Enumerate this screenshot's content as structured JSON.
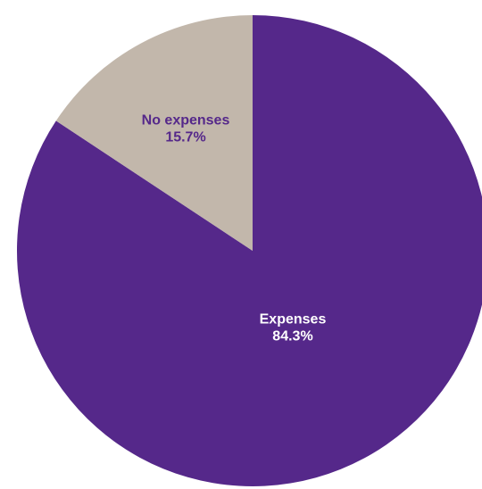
{
  "chart_data": {
    "type": "pie",
    "title": "",
    "slices": [
      {
        "label": "Expenses",
        "value": 84.3,
        "display": "84.3%",
        "color": "#55288a",
        "label_color": "#ffffff"
      },
      {
        "label": "No expenses",
        "value": 15.7,
        "display": "15.7%",
        "color": "#c2b7ab",
        "label_color": "#55288a"
      }
    ],
    "legend": "none"
  }
}
